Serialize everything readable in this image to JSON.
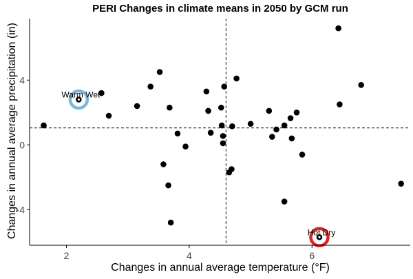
{
  "chart_data": {
    "type": "scatter",
    "title": "PERI Changes in climate means in 2050 by GCM run",
    "xlabel": "Changes in annual average temperature (°F)",
    "ylabel": "Changes in annual average precipitation (in)",
    "xlim": [
      1.4,
      7.6
    ],
    "ylim": [
      -6.2,
      7.8
    ],
    "x_ticks": [
      2,
      4,
      6
    ],
    "y_ticks": [
      -4,
      0,
      4
    ],
    "x_tick_labels": [
      "2",
      "4",
      "6"
    ],
    "y_tick_labels": [
      "-4",
      "0",
      "4"
    ],
    "grid": false,
    "reference_lines": {
      "x": 4.6,
      "y": 1.05
    },
    "points": [
      {
        "x": 1.63,
        "y": 1.2
      },
      {
        "x": 2.57,
        "y": 3.2
      },
      {
        "x": 2.69,
        "y": 1.8
      },
      {
        "x": 3.15,
        "y": 2.4
      },
      {
        "x": 3.37,
        "y": 3.6
      },
      {
        "x": 3.52,
        "y": 4.5
      },
      {
        "x": 3.68,
        "y": 2.3
      },
      {
        "x": 3.81,
        "y": 0.7
      },
      {
        "x": 3.58,
        "y": -1.2
      },
      {
        "x": 3.66,
        "y": -2.5
      },
      {
        "x": 3.7,
        "y": -4.8
      },
      {
        "x": 3.94,
        "y": -0.1
      },
      {
        "x": 4.28,
        "y": 3.3
      },
      {
        "x": 4.31,
        "y": 2.1
      },
      {
        "x": 4.35,
        "y": 0.75
      },
      {
        "x": 4.52,
        "y": 2.3
      },
      {
        "x": 4.53,
        "y": 1.2
      },
      {
        "x": 4.55,
        "y": 0.55
      },
      {
        "x": 4.55,
        "y": 0.1
      },
      {
        "x": 4.57,
        "y": 3.6
      },
      {
        "x": 4.65,
        "y": -1.7
      },
      {
        "x": 4.69,
        "y": -1.5
      },
      {
        "x": 4.7,
        "y": 1.15
      },
      {
        "x": 4.77,
        "y": 4.1
      },
      {
        "x": 5.0,
        "y": 1.3
      },
      {
        "x": 5.3,
        "y": 2.1
      },
      {
        "x": 5.35,
        "y": 0.5
      },
      {
        "x": 5.42,
        "y": 0.95
      },
      {
        "x": 5.55,
        "y": 1.2
      },
      {
        "x": 5.55,
        "y": -3.5
      },
      {
        "x": 5.65,
        "y": 1.65
      },
      {
        "x": 5.67,
        "y": 0.4
      },
      {
        "x": 5.75,
        "y": 2.0
      },
      {
        "x": 5.84,
        "y": -0.6
      },
      {
        "x": 6.43,
        "y": 7.2
      },
      {
        "x": 6.45,
        "y": 2.5
      },
      {
        "x": 6.8,
        "y": 3.7
      },
      {
        "x": 7.45,
        "y": -2.4
      }
    ],
    "annotations": [
      {
        "label": "Warm Wet",
        "x": 2.2,
        "y": 2.8,
        "color": "#7fb6dc"
      },
      {
        "label": "Hot Dry",
        "x": 6.12,
        "y": -5.7,
        "color": "#d62728"
      }
    ],
    "colors": {
      "points": "#000000",
      "axis": "#000000",
      "reference_lines": "#333333"
    }
  }
}
